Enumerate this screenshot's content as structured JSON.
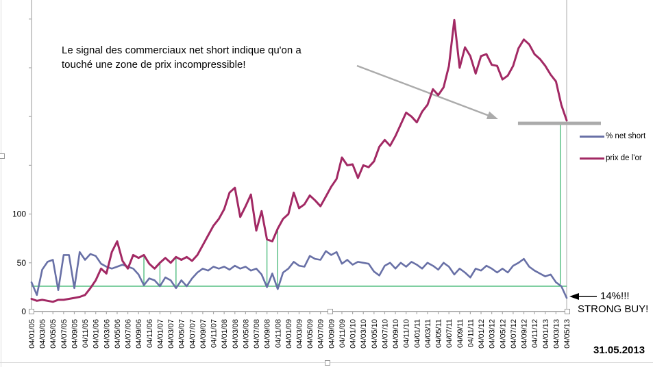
{
  "annotations": {
    "main_note": "Le signal des commerciaux net short indique qu'on a\ntouché une zone de prix incompressible!",
    "pct_callout": "14%!!!",
    "strong_buy": "STRONG BUY!",
    "date_note": "31.05.2013"
  },
  "chart_data": {
    "type": "line",
    "title": "",
    "xlabel": "",
    "ylabel": "",
    "x_labels": [
      "04/01/05",
      "04/03/05",
      "04/05/05",
      "04/07/05",
      "04/09/05",
      "04/11/05",
      "04/01/06",
      "04/03/06",
      "04/05/06",
      "04/07/06",
      "04/09/06",
      "04/11/06",
      "04/01/07",
      "04/03/07",
      "04/05/07",
      "04/07/07",
      "04/09/07",
      "04/11/07",
      "04/01/08",
      "04/03/08",
      "04/05/08",
      "04/07/08",
      "04/09/08",
      "04/11/08",
      "04/01/09",
      "04/03/09",
      "04/05/09",
      "04/07/09",
      "04/09/09",
      "04/11/09",
      "04/01/10",
      "04/03/10",
      "04/05/10",
      "04/07/10",
      "04/09/10",
      "04/11/10",
      "04/01/11",
      "04/03/11",
      "04/05/11",
      "04/07/11",
      "04/09/11",
      "04/11/11",
      "04/01/12",
      "04/03/12",
      "04/05/12",
      "04/07/12",
      "04/09/12",
      "04/11/12",
      "04/01/13",
      "04/03/13",
      "04/05/13"
    ],
    "y_axis": {
      "labeled_ticks": [
        0,
        50,
        100
      ],
      "tick_step": 50,
      "min": 0,
      "max": 312
    },
    "grid": false,
    "legend_position": "right",
    "colors": {
      "net_short": "#6870A6",
      "gold": "#A22964",
      "signal_green": "#33B269",
      "gray_annotation": "#ABABAB",
      "axis": "#A9A9A9"
    },
    "threshold_line": {
      "value": 26,
      "color": "#33B269"
    },
    "signal_months": [
      21,
      24,
      27,
      44,
      46
    ],
    "final_signal": {
      "month": 98.8,
      "top_value": 193
    },
    "resistance_line": {
      "value": 193,
      "from_month": 90.9,
      "to_month": 106.4
    },
    "series": [
      {
        "name": "% net short",
        "color": "#6870A6",
        "width": 2.6,
        "values": [
          30,
          17,
          43,
          51,
          53,
          22,
          58,
          58,
          24,
          61,
          53,
          59,
          57,
          49,
          46,
          44,
          46,
          48,
          46,
          44,
          38,
          27,
          34,
          32,
          26,
          35,
          32,
          24,
          32,
          26,
          34,
          40,
          44,
          42,
          46,
          44,
          46,
          43,
          47,
          44,
          46,
          42,
          44,
          38,
          25,
          39,
          23,
          40,
          44,
          51,
          47,
          46,
          57,
          54,
          53,
          62,
          58,
          61,
          49,
          53,
          48,
          51,
          50,
          49,
          41,
          37,
          47,
          50,
          44,
          50,
          46,
          51,
          48,
          44,
          50,
          47,
          43,
          50,
          46,
          38,
          44,
          40,
          35,
          44,
          42,
          47,
          44,
          40,
          44,
          40,
          47,
          50,
          54,
          46,
          42,
          39,
          36,
          38,
          30,
          26,
          14
        ]
      },
      {
        "name": "prix de l'or",
        "color": "#A22964",
        "width": 3,
        "values": [
          13,
          11,
          12,
          11,
          10,
          12,
          12,
          13,
          14,
          15,
          17,
          24,
          32,
          44,
          39,
          61,
          72,
          52,
          44,
          58,
          55,
          58,
          49,
          44,
          50,
          55,
          50,
          56,
          53,
          56,
          52,
          58,
          68,
          78,
          88,
          95,
          105,
          122,
          127,
          97,
          108,
          120,
          83,
          103,
          74,
          72,
          85,
          95,
          100,
          122,
          106,
          110,
          119,
          114,
          108,
          118,
          128,
          136,
          158,
          150,
          151,
          137,
          150,
          148,
          154,
          169,
          176,
          170,
          180,
          192,
          204,
          200,
          194,
          205,
          212,
          228,
          222,
          230,
          252,
          299,
          250,
          271,
          262,
          244,
          262,
          264,
          253,
          252,
          238,
          242,
          252,
          270,
          279,
          274,
          264,
          259,
          252,
          243,
          236,
          212,
          196
        ]
      }
    ]
  }
}
